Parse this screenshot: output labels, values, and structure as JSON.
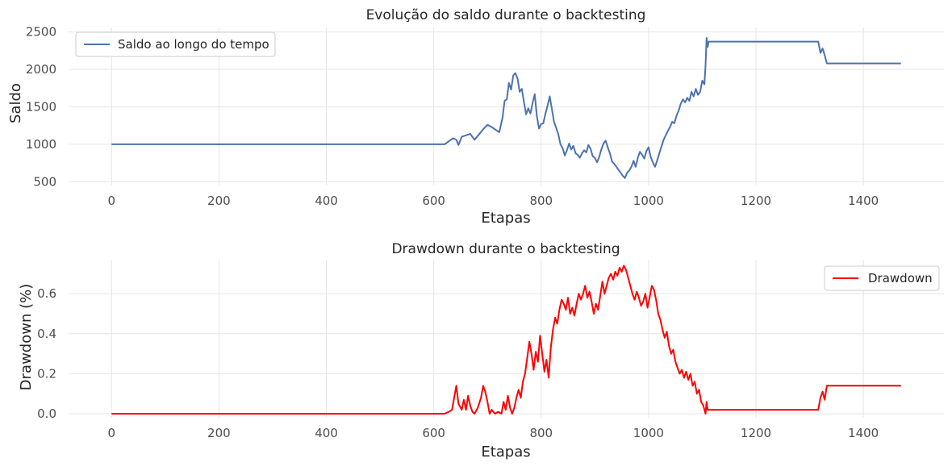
{
  "chart_data": [
    {
      "type": "line",
      "title": "Evolução do saldo durante o backtesting",
      "xlabel": "Etapas",
      "ylabel": "Saldo",
      "xlim": [
        -80,
        1550
      ],
      "ylim": [
        450,
        2560
      ],
      "xticks": [
        0,
        200,
        400,
        600,
        800,
        1000,
        1200,
        1400
      ],
      "yticks": [
        500,
        1000,
        1500,
        2000,
        2500
      ],
      "grid": true,
      "legend": "top-left",
      "series": [
        {
          "name": "Saldo ao longo do tempo",
          "color": "#4c72b0",
          "points": [
            [
              0,
              1000
            ],
            [
              620,
              1000
            ],
            [
              628,
              1040
            ],
            [
              636,
              1080
            ],
            [
              642,
              1060
            ],
            [
              646,
              990
            ],
            [
              652,
              1100
            ],
            [
              660,
              1120
            ],
            [
              668,
              1140
            ],
            [
              676,
              1060
            ],
            [
              684,
              1130
            ],
            [
              692,
              1200
            ],
            [
              700,
              1260
            ],
            [
              708,
              1230
            ],
            [
              716,
              1190
            ],
            [
              722,
              1160
            ],
            [
              728,
              1350
            ],
            [
              732,
              1580
            ],
            [
              736,
              1600
            ],
            [
              740,
              1820
            ],
            [
              744,
              1730
            ],
            [
              748,
              1920
            ],
            [
              752,
              1950
            ],
            [
              756,
              1880
            ],
            [
              760,
              1700
            ],
            [
              764,
              1740
            ],
            [
              768,
              1560
            ],
            [
              772,
              1400
            ],
            [
              776,
              1480
            ],
            [
              780,
              1410
            ],
            [
              784,
              1550
            ],
            [
              788,
              1670
            ],
            [
              792,
              1380
            ],
            [
              796,
              1210
            ],
            [
              800,
              1270
            ],
            [
              804,
              1280
            ],
            [
              808,
              1410
            ],
            [
              812,
              1520
            ],
            [
              816,
              1640
            ],
            [
              820,
              1470
            ],
            [
              824,
              1300
            ],
            [
              828,
              1220
            ],
            [
              832,
              1130
            ],
            [
              836,
              1000
            ],
            [
              840,
              950
            ],
            [
              844,
              850
            ],
            [
              848,
              920
            ],
            [
              852,
              1010
            ],
            [
              856,
              930
            ],
            [
              860,
              980
            ],
            [
              864,
              880
            ],
            [
              868,
              860
            ],
            [
              872,
              820
            ],
            [
              876,
              880
            ],
            [
              880,
              920
            ],
            [
              884,
              890
            ],
            [
              888,
              990
            ],
            [
              892,
              940
            ],
            [
              896,
              840
            ],
            [
              900,
              820
            ],
            [
              904,
              760
            ],
            [
              908,
              830
            ],
            [
              912,
              930
            ],
            [
              916,
              1010
            ],
            [
              920,
              1050
            ],
            [
              924,
              960
            ],
            [
              928,
              880
            ],
            [
              932,
              770
            ],
            [
              936,
              740
            ],
            [
              940,
              700
            ],
            [
              944,
              660
            ],
            [
              948,
              620
            ],
            [
              952,
              580
            ],
            [
              956,
              550
            ],
            [
              960,
              620
            ],
            [
              964,
              650
            ],
            [
              968,
              700
            ],
            [
              972,
              780
            ],
            [
              976,
              700
            ],
            [
              980,
              820
            ],
            [
              984,
              900
            ],
            [
              988,
              860
            ],
            [
              992,
              810
            ],
            [
              996,
              910
            ],
            [
              1000,
              960
            ],
            [
              1004,
              830
            ],
            [
              1008,
              760
            ],
            [
              1012,
              700
            ],
            [
              1016,
              780
            ],
            [
              1020,
              880
            ],
            [
              1024,
              970
            ],
            [
              1028,
              1060
            ],
            [
              1032,
              1120
            ],
            [
              1036,
              1180
            ],
            [
              1040,
              1230
            ],
            [
              1044,
              1300
            ],
            [
              1048,
              1280
            ],
            [
              1052,
              1380
            ],
            [
              1056,
              1450
            ],
            [
              1060,
              1540
            ],
            [
              1064,
              1600
            ],
            [
              1068,
              1560
            ],
            [
              1072,
              1620
            ],
            [
              1076,
              1580
            ],
            [
              1080,
              1700
            ],
            [
              1084,
              1640
            ],
            [
              1088,
              1740
            ],
            [
              1092,
              1660
            ],
            [
              1096,
              1700
            ],
            [
              1100,
              1850
            ],
            [
              1104,
              1800
            ],
            [
              1106,
              2050
            ],
            [
              1108,
              2420
            ],
            [
              1110,
              2300
            ],
            [
              1112,
              2370
            ],
            [
              1316,
              2370
            ],
            [
              1320,
              2220
            ],
            [
              1324,
              2280
            ],
            [
              1328,
              2190
            ],
            [
              1332,
              2080
            ],
            [
              1470,
              2080
            ]
          ]
        }
      ]
    },
    {
      "type": "line",
      "title": "Drawdown durante o backtesting",
      "xlabel": "Etapas",
      "ylabel": "Drawdown (%)",
      "xlim": [
        -80,
        1550
      ],
      "ylim": [
        -0.02,
        0.77
      ],
      "xticks": [
        0,
        200,
        400,
        600,
        800,
        1000,
        1200,
        1400
      ],
      "yticks": [
        0.0,
        0.2,
        0.4,
        0.6
      ],
      "ytick_labels": [
        "0.0",
        "0.2",
        "0.4",
        "0.6"
      ],
      "grid": true,
      "legend": "top-right",
      "series": [
        {
          "name": "Drawdown",
          "color": "#ff0000",
          "points": [
            [
              0,
              0
            ],
            [
              620,
              0
            ],
            [
              628,
              0.01
            ],
            [
              634,
              0.02
            ],
            [
              638,
              0.08
            ],
            [
              642,
              0.14
            ],
            [
              646,
              0.05
            ],
            [
              652,
              0.02
            ],
            [
              656,
              0.07
            ],
            [
              660,
              0.02
            ],
            [
              664,
              0.09
            ],
            [
              668,
              0.04
            ],
            [
              672,
              0.01
            ],
            [
              676,
              0.0
            ],
            [
              682,
              0.03
            ],
            [
              688,
              0.08
            ],
            [
              692,
              0.14
            ],
            [
              696,
              0.11
            ],
            [
              700,
              0.06
            ],
            [
              704,
              0.0
            ],
            [
              708,
              0.02
            ],
            [
              714,
              0.0
            ],
            [
              720,
              0.01
            ],
            [
              726,
              0.0
            ],
            [
              730,
              0.06
            ],
            [
              734,
              0.02
            ],
            [
              738,
              0.09
            ],
            [
              742,
              0.03
            ],
            [
              746,
              0.0
            ],
            [
              750,
              0.03
            ],
            [
              754,
              0.08
            ],
            [
              758,
              0.12
            ],
            [
              762,
              0.08
            ],
            [
              766,
              0.16
            ],
            [
              770,
              0.2
            ],
            [
              774,
              0.28
            ],
            [
              778,
              0.36
            ],
            [
              782,
              0.3
            ],
            [
              786,
              0.22
            ],
            [
              790,
              0.31
            ],
            [
              794,
              0.26
            ],
            [
              798,
              0.39
            ],
            [
              802,
              0.3
            ],
            [
              806,
              0.21
            ],
            [
              810,
              0.27
            ],
            [
              814,
              0.18
            ],
            [
              818,
              0.33
            ],
            [
              822,
              0.42
            ],
            [
              826,
              0.48
            ],
            [
              830,
              0.45
            ],
            [
              834,
              0.52
            ],
            [
              838,
              0.57
            ],
            [
              842,
              0.55
            ],
            [
              846,
              0.52
            ],
            [
              850,
              0.58
            ],
            [
              854,
              0.5
            ],
            [
              858,
              0.53
            ],
            [
              862,
              0.49
            ],
            [
              866,
              0.55
            ],
            [
              870,
              0.6
            ],
            [
              874,
              0.57
            ],
            [
              878,
              0.6
            ],
            [
              882,
              0.64
            ],
            [
              886,
              0.58
            ],
            [
              890,
              0.61
            ],
            [
              894,
              0.56
            ],
            [
              898,
              0.5
            ],
            [
              902,
              0.55
            ],
            [
              906,
              0.52
            ],
            [
              910,
              0.59
            ],
            [
              914,
              0.66
            ],
            [
              918,
              0.6
            ],
            [
              922,
              0.64
            ],
            [
              926,
              0.68
            ],
            [
              930,
              0.7
            ],
            [
              934,
              0.67
            ],
            [
              938,
              0.71
            ],
            [
              942,
              0.69
            ],
            [
              946,
              0.73
            ],
            [
              950,
              0.71
            ],
            [
              954,
              0.74
            ],
            [
              958,
              0.72
            ],
            [
              962,
              0.68
            ],
            [
              966,
              0.64
            ],
            [
              970,
              0.6
            ],
            [
              974,
              0.57
            ],
            [
              978,
              0.61
            ],
            [
              982,
              0.58
            ],
            [
              986,
              0.54
            ],
            [
              990,
              0.56
            ],
            [
              994,
              0.6
            ],
            [
              998,
              0.53
            ],
            [
              1002,
              0.58
            ],
            [
              1006,
              0.64
            ],
            [
              1010,
              0.62
            ],
            [
              1014,
              0.57
            ],
            [
              1018,
              0.5
            ],
            [
              1022,
              0.47
            ],
            [
              1026,
              0.42
            ],
            [
              1030,
              0.38
            ],
            [
              1034,
              0.41
            ],
            [
              1038,
              0.34
            ],
            [
              1042,
              0.3
            ],
            [
              1046,
              0.32
            ],
            [
              1050,
              0.26
            ],
            [
              1054,
              0.23
            ],
            [
              1058,
              0.2
            ],
            [
              1062,
              0.22
            ],
            [
              1066,
              0.18
            ],
            [
              1070,
              0.21
            ],
            [
              1074,
              0.17
            ],
            [
              1078,
              0.2
            ],
            [
              1082,
              0.14
            ],
            [
              1086,
              0.16
            ],
            [
              1090,
              0.1
            ],
            [
              1094,
              0.12
            ],
            [
              1098,
              0.06
            ],
            [
              1102,
              0.04
            ],
            [
              1106,
              0.0
            ],
            [
              1108,
              0.06
            ],
            [
              1110,
              0.02
            ],
            [
              1316,
              0.02
            ],
            [
              1320,
              0.08
            ],
            [
              1324,
              0.11
            ],
            [
              1328,
              0.07
            ],
            [
              1332,
              0.14
            ],
            [
              1470,
              0.14
            ]
          ]
        }
      ]
    }
  ]
}
